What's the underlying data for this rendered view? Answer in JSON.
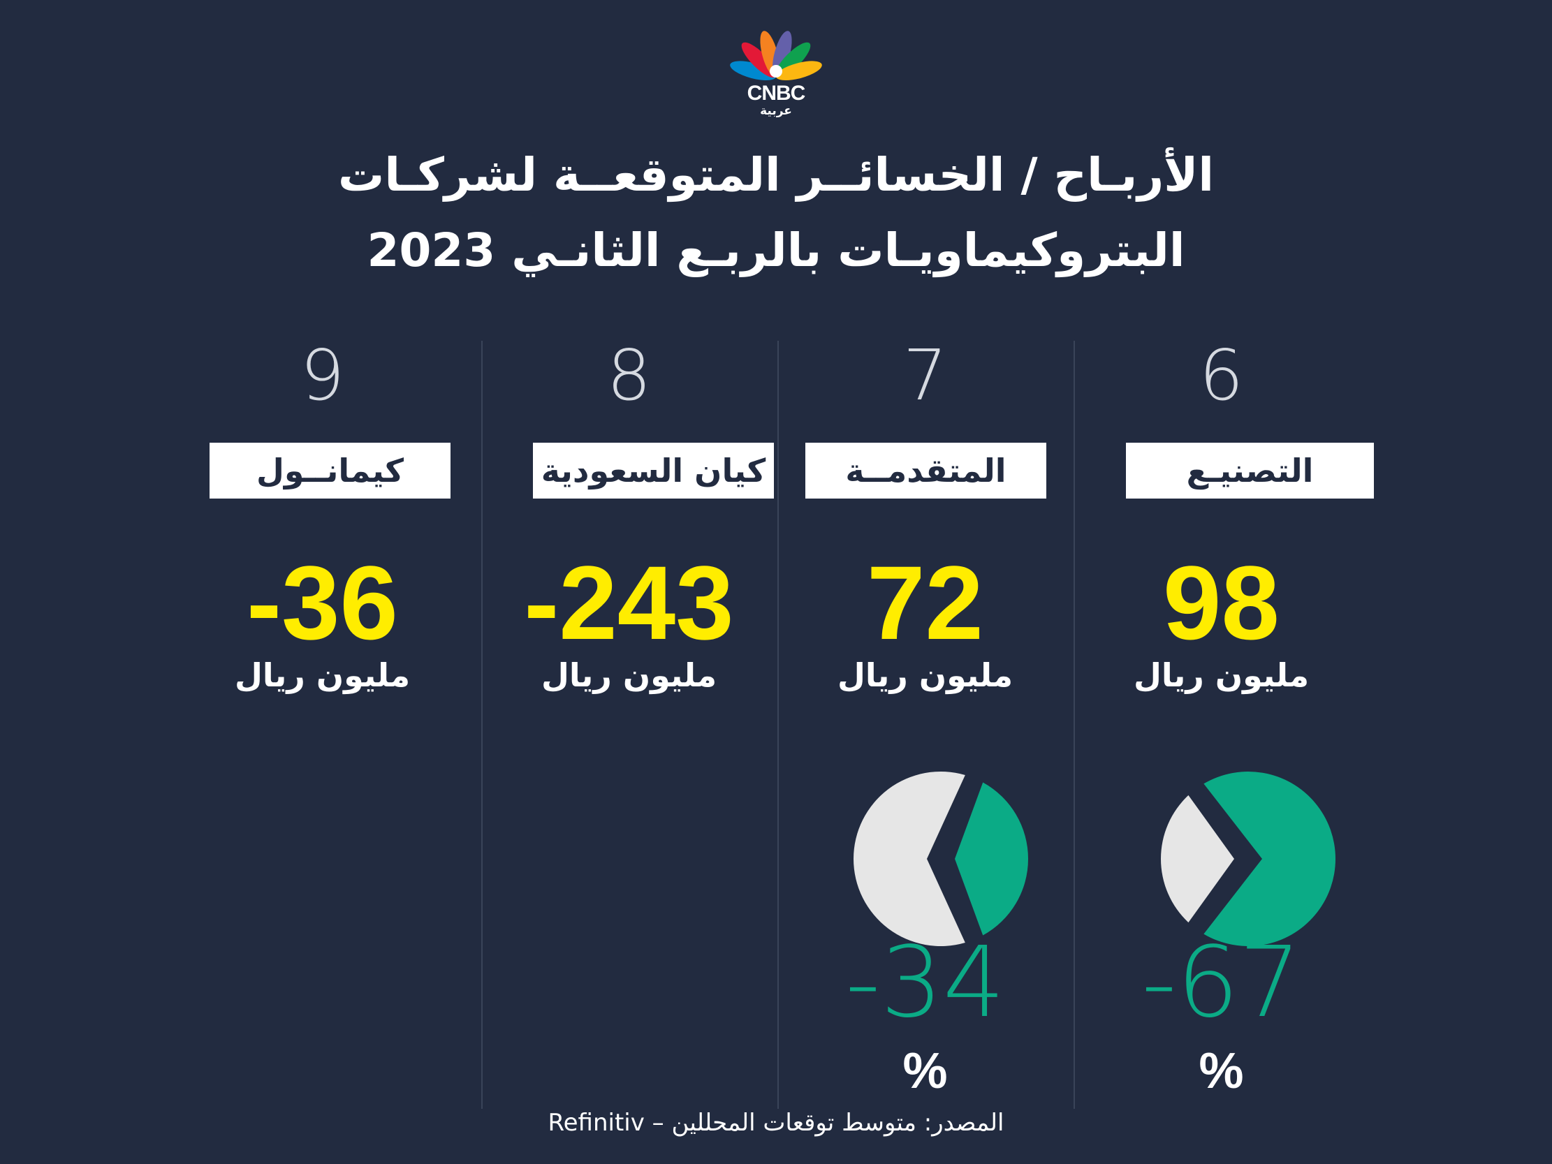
{
  "logo": {
    "brand": "CNBC",
    "sub": "عربية"
  },
  "title": {
    "line1": "الأربـاح / الخسائــر المتوقعــة لشركـات",
    "line2": "البتروكيماويـات بالربـع الثانـي 2023"
  },
  "companies": [
    {
      "rank": "9",
      "name": "كيمانــول",
      "value": "-36",
      "unit": "مليون ريال"
    },
    {
      "rank": "8",
      "name": "كيان السعودية",
      "value": "-243",
      "unit": "مليون ريال"
    },
    {
      "rank": "7",
      "name": "المتقدمــة",
      "value": "72",
      "unit": "مليون ريال",
      "change": "-34",
      "change_unit": "%",
      "change_pct": -34
    },
    {
      "rank": "6",
      "name": "التصنيـع",
      "value": "98",
      "unit": "مليون ريال",
      "change": "-67",
      "change_unit": "%",
      "change_pct": -67
    }
  ],
  "source": "المصدر: متوسط توقعات المحللين – Refinitiv",
  "colors": {
    "background": "#222b40",
    "value": "#ffed00",
    "change": "#0bab86",
    "pie_light": "#e6e6e6",
    "text": "#ffffff"
  }
}
